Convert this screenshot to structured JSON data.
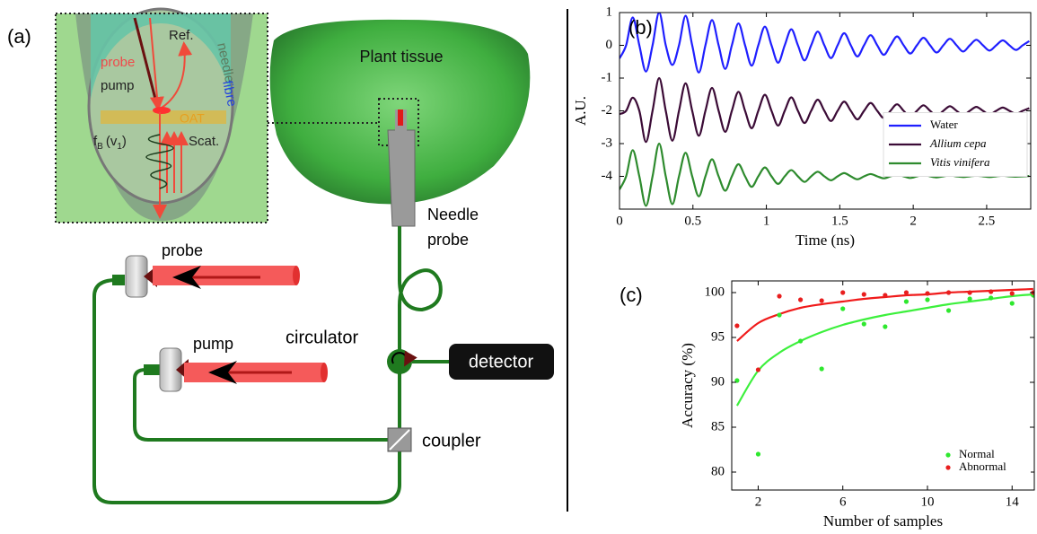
{
  "diagram": {
    "label": "(a)",
    "inset": {
      "needle": "needle",
      "fibre": "fibre",
      "ref": "Ref.",
      "probe": "probe",
      "pump": "pump",
      "oat": "OAT",
      "scat": "Scat.",
      "fb": {
        "base": "f",
        "sub": "B",
        "arg": "(v",
        "argsub": "1",
        "close": ")"
      }
    },
    "tissue": "Plant tissue",
    "needle_probe": [
      "Needle",
      "probe"
    ],
    "probe": "probe",
    "pump": "pump",
    "circulator": "circulator",
    "detector": "detector",
    "coupler": "coupler"
  },
  "chart_data": [
    {
      "type": "line",
      "panel": "(b)",
      "xlabel": "Time (ns)",
      "ylabel": "A.U.",
      "x": [
        0,
        0.045,
        0.09,
        0.135,
        0.18,
        0.225,
        0.27,
        0.315,
        0.36,
        0.405,
        0.45,
        0.495,
        0.54,
        0.585,
        0.63,
        0.675,
        0.72,
        0.765,
        0.81,
        0.855,
        0.9,
        0.945,
        0.99,
        1.035,
        1.08,
        1.125,
        1.17,
        1.215,
        1.26,
        1.305,
        1.35,
        1.395,
        1.44,
        1.485,
        1.53,
        1.575,
        1.62,
        1.665,
        1.71,
        1.755,
        1.8,
        1.845,
        1.89,
        1.935,
        1.98,
        2.025,
        2.07,
        2.115,
        2.16,
        2.205,
        2.25,
        2.295,
        2.34,
        2.385,
        2.43,
        2.475,
        2.52,
        2.565,
        2.61,
        2.655,
        2.7,
        2.745,
        2.79
      ],
      "series": [
        {
          "name": "Water",
          "color": "#1f1fff",
          "italic": false,
          "values": [
            -0.4,
            0,
            0.85,
            0,
            -0.8,
            0,
            1,
            0,
            -0.6,
            0,
            0.9,
            0,
            -0.83,
            0,
            0.77,
            0,
            -0.72,
            0,
            0.67,
            0,
            -0.62,
            0,
            0.57,
            0,
            -0.53,
            0,
            0.49,
            0,
            -0.46,
            0,
            0.42,
            0,
            -0.39,
            0,
            0.37,
            0,
            -0.34,
            0,
            0.31,
            0,
            -0.29,
            0,
            0.27,
            0,
            -0.25,
            0,
            0.23,
            0,
            -0.22,
            0,
            0.2,
            0,
            -0.19,
            0,
            0.17,
            0,
            -0.16,
            0,
            0.15,
            0,
            -0.14,
            0,
            0.13
          ]
        },
        {
          "name": "Allium cepa",
          "color": "#3b0b36",
          "italic": true,
          "values": [
            -2.1,
            -2,
            -1.6,
            -2,
            -2.95,
            -2,
            -1,
            -2,
            -2.91,
            -2,
            -1.16,
            -2,
            -2.76,
            -2,
            -1.3,
            -2,
            -2.64,
            -2,
            -1.42,
            -2,
            -2.53,
            -2,
            -1.51,
            -2,
            -2.45,
            -2,
            -1.59,
            -2,
            -2.37,
            -2,
            -1.66,
            -2,
            -2.31,
            -2,
            -1.72,
            -2,
            -2.26,
            -2,
            -1.76,
            -2,
            -2.22,
            -2,
            -1.8,
            -2,
            -2.18,
            -2,
            -1.83,
            -2,
            -2.15,
            -2,
            -1.86,
            -2,
            -2.13,
            -2,
            -1.88,
            -2,
            -2.11,
            -2,
            -1.9,
            -2,
            -2.09,
            -2,
            -1.92
          ]
        },
        {
          "name": "Vitis vinifera",
          "color": "#2e8b2e",
          "italic": true,
          "values": [
            -4.4,
            -4,
            -3.2,
            -4,
            -4.9,
            -4,
            -3,
            -4,
            -4.85,
            -4,
            -3.28,
            -4,
            -4.61,
            -4,
            -3.48,
            -4,
            -4.44,
            -4,
            -3.63,
            -4,
            -4.32,
            -4,
            -3.73,
            -4,
            -4.23,
            -4,
            -3.81,
            -4,
            -4.17,
            -4,
            -3.86,
            -4,
            -4.12,
            -4,
            -3.9,
            -4,
            -4.09,
            -4,
            -3.93,
            -4,
            -4.06,
            -4,
            -3.95,
            -4,
            -4.05,
            -4,
            -3.96,
            -4,
            -4.03,
            -4,
            -3.97,
            -4,
            -4.02,
            -4,
            -3.98,
            -4,
            -4.02,
            -4,
            -3.98,
            -4,
            -4.01,
            -4,
            -3.99
          ]
        }
      ],
      "xlim": [
        0,
        2.8
      ],
      "xticks": [
        0,
        0.5,
        1,
        1.5,
        2,
        2.5
      ],
      "ylim": [
        -5,
        1
      ],
      "yticks": [
        -4,
        -3,
        -2,
        -1,
        0,
        1
      ],
      "legend": "center right"
    },
    {
      "type": "scatter",
      "panel": "(c)",
      "xlabel": "Number of samples",
      "ylabel": "Accuracy (%)",
      "x": [
        1,
        2,
        3,
        4,
        5,
        6,
        7,
        8,
        9,
        10,
        11,
        12,
        13,
        14,
        15
      ],
      "series": [
        {
          "name": "Normal",
          "color": "#2ee82e",
          "values": [
            90.2,
            82,
            97.5,
            94.6,
            91.5,
            98.2,
            96.5,
            96.2,
            99,
            99.2,
            98,
            99.3,
            99.4,
            98.8,
            99.7
          ]
        },
        {
          "name": "Abnormal",
          "color": "#e81e1e",
          "values": [
            96.3,
            91.4,
            99.6,
            99.2,
            99.1,
            100,
            99.8,
            99.7,
            100,
            99.9,
            100,
            100,
            100.1,
            99.9,
            100
          ]
        }
      ],
      "fits": [
        {
          "color": "#3cf03c",
          "values": [
            87.4,
            91.3,
            93.3,
            94.6,
            95.6,
            96.4,
            97,
            97.5,
            97.9,
            98.3,
            98.7,
            99,
            99.3,
            99.6,
            99.8
          ]
        },
        {
          "color": "#f01a1a",
          "values": [
            94.6,
            96.6,
            97.6,
            98.3,
            98.7,
            99,
            99.3,
            99.5,
            99.7,
            99.8,
            100,
            100.1,
            100.2,
            100.3,
            100.4
          ]
        }
      ],
      "xlim": [
        0.75,
        15.05
      ],
      "xticks": [
        2,
        6,
        10,
        14
      ],
      "ylim": [
        78,
        101.3
      ],
      "yticks": [
        80,
        85,
        90,
        95,
        100
      ],
      "legend": "lower right"
    }
  ]
}
